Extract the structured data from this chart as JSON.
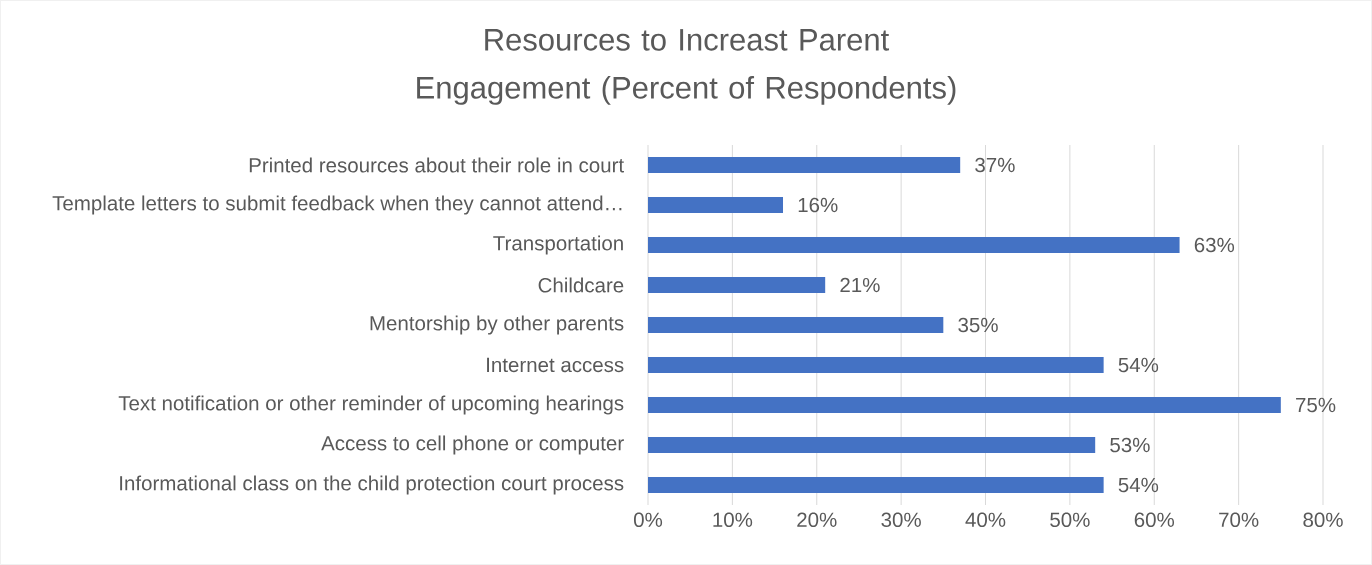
{
  "chart_data": {
    "type": "bar",
    "orientation": "horizontal",
    "title": "Resources to Increast Parent Engagement (Percent of Respondents)",
    "categories": [
      "Printed resources about their role in court",
      "Template letters to submit feedback when they cannot attend…",
      "Transportation",
      "Childcare",
      "Mentorship by other parents",
      "Internet access",
      "Text notification or other reminder of upcoming hearings",
      "Access to cell phone or computer",
      "Informational class on the child protection court process"
    ],
    "values": [
      37,
      16,
      63,
      21,
      35,
      54,
      75,
      53,
      54
    ],
    "value_labels": [
      "37%",
      "16%",
      "63%",
      "21%",
      "35%",
      "54%",
      "75%",
      "53%",
      "54%"
    ],
    "color": "#4472c4",
    "xlim": [
      0,
      80
    ],
    "xticks": [
      {
        "value": 0,
        "label": "0%"
      },
      {
        "value": 10,
        "label": "10%"
      },
      {
        "value": 20,
        "label": "20%"
      },
      {
        "value": 30,
        "label": "30%"
      },
      {
        "value": 40,
        "label": "40%"
      },
      {
        "value": 50,
        "label": "50%"
      },
      {
        "value": 60,
        "label": "60%"
      },
      {
        "value": 70,
        "label": "70%"
      },
      {
        "value": 80,
        "label": "80%"
      }
    ],
    "grid": "x"
  }
}
